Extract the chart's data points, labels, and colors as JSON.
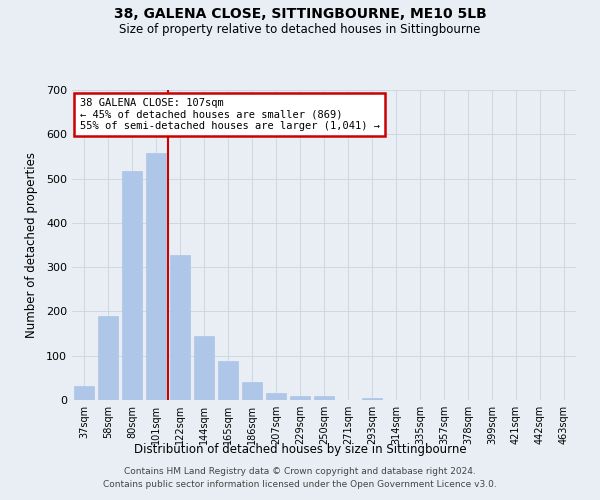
{
  "title": "38, GALENA CLOSE, SITTINGBOURNE, ME10 5LB",
  "subtitle": "Size of property relative to detached houses in Sittingbourne",
  "xlabel": "Distribution of detached houses by size in Sittingbourne",
  "ylabel": "Number of detached properties",
  "footnote1": "Contains HM Land Registry data © Crown copyright and database right 2024.",
  "footnote2": "Contains public sector information licensed under the Open Government Licence v3.0.",
  "categories": [
    "37sqm",
    "58sqm",
    "80sqm",
    "101sqm",
    "122sqm",
    "144sqm",
    "165sqm",
    "186sqm",
    "207sqm",
    "229sqm",
    "250sqm",
    "271sqm",
    "293sqm",
    "314sqm",
    "335sqm",
    "357sqm",
    "378sqm",
    "399sqm",
    "421sqm",
    "442sqm",
    "463sqm"
  ],
  "values": [
    32,
    190,
    517,
    557,
    328,
    144,
    87,
    40,
    15,
    8,
    10,
    0,
    4,
    0,
    0,
    0,
    0,
    0,
    0,
    0,
    0
  ],
  "bar_color": "#aec6e8",
  "bar_edge_color": "#aec6e8",
  "grid_color": "#cdd8e3",
  "red_line_x": 3.5,
  "annotation_line1": "38 GALENA CLOSE: 107sqm",
  "annotation_line2": "← 45% of detached houses are smaller (869)",
  "annotation_line3": "55% of semi-detached houses are larger (1,041) →",
  "annotation_box_color": "#ffffff",
  "annotation_border_color": "#cc0000",
  "ylim": [
    0,
    700
  ],
  "yticks": [
    0,
    100,
    200,
    300,
    400,
    500,
    600,
    700
  ],
  "background_color": "#e8eef4"
}
